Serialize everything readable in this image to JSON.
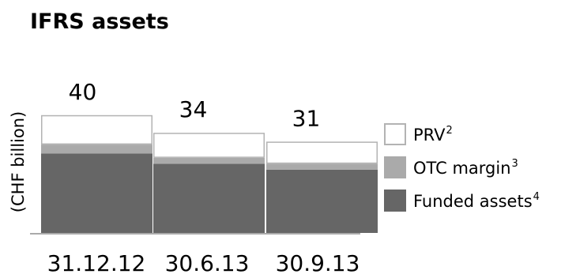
{
  "chart_data": {
    "type": "bar",
    "stacked": true,
    "title": "IFRS assets",
    "ylabel": "(CHF billion)",
    "categories": [
      "31.12.12",
      "30.6.13",
      "30.9.13"
    ],
    "totals": [
      "40",
      "34",
      "31"
    ],
    "ylim": [
      0,
      40
    ],
    "grid": false,
    "legend_position": "right",
    "series": [
      {
        "name": "Funded assets",
        "superscript": "4",
        "values": [
          27,
          23.5,
          21.5
        ],
        "color": "#666666",
        "border": "#666666"
      },
      {
        "name": "OTC margin",
        "superscript": "3",
        "values": [
          3,
          2,
          2
        ],
        "color": "#aaaaaa",
        "border": "#aaaaaa"
      },
      {
        "name": "PRV",
        "superscript": "2",
        "values": [
          10,
          8.5,
          7.5
        ],
        "color": "#ffffff",
        "border": "#b3b3b3"
      }
    ],
    "legend_order": [
      2,
      1,
      0
    ]
  }
}
